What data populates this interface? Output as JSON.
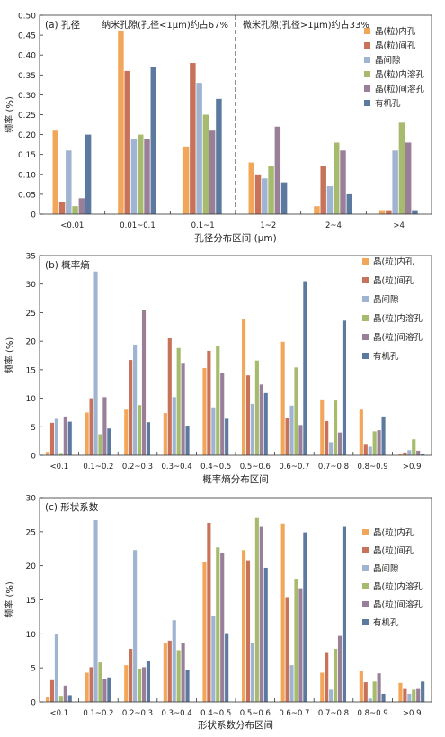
{
  "colors": [
    "#f2a65a",
    "#c8725a",
    "#9fb4d0",
    "#a6bb6e",
    "#9a7f98",
    "#5c7aa0"
  ],
  "chart_data": [
    {
      "type": "bar",
      "title": "(a) 孔径",
      "xlabel": "孔径分布区间 (μm)",
      "ylabel": "频率 (%)",
      "ylim": [
        0,
        0.5
      ],
      "yticks": [
        "0",
        "0.05",
        "0.10",
        "0.15",
        "0.20",
        "0.25",
        "0.30",
        "0.35",
        "0.40",
        "0.45",
        "0.50"
      ],
      "grid": false,
      "legend": "top-right",
      "annotation_left": "纳米孔隙(孔径<1μm)约占67%",
      "annotation_right": "微米孔隙(孔径>1μm)约占33%",
      "divider_after_category": 2,
      "categories": [
        "<0.01",
        "0.01~0.1",
        "0.1~1",
        "1~2",
        "2~4",
        ">4"
      ],
      "series": [
        {
          "name": "晶(粒)内孔",
          "values": [
            0.21,
            0.46,
            0.17,
            0.13,
            0.02,
            0.01
          ]
        },
        {
          "name": "晶(粒)间孔",
          "values": [
            0.03,
            0.36,
            0.38,
            0.1,
            0.12,
            0.01
          ]
        },
        {
          "name": "晶间隙",
          "values": [
            0.16,
            0.19,
            0.33,
            0.09,
            0.07,
            0.16
          ]
        },
        {
          "name": "晶(粒)内溶孔",
          "values": [
            0.02,
            0.2,
            0.25,
            0.12,
            0.18,
            0.23
          ]
        },
        {
          "name": "晶(粒)间溶孔",
          "values": [
            0.04,
            0.19,
            0.21,
            0.22,
            0.16,
            0.18
          ]
        },
        {
          "name": "有机孔",
          "values": [
            0.2,
            0.37,
            0.29,
            0.08,
            0.05,
            0.01
          ]
        }
      ]
    },
    {
      "type": "bar",
      "title": "(b) 概率熵",
      "xlabel": "概率熵分布区间",
      "ylabel": "频率 (%)",
      "ylim": [
        0,
        35
      ],
      "yticks": [
        "0",
        "5",
        "10",
        "15",
        "20",
        "25",
        "30",
        "35"
      ],
      "grid": false,
      "legend": "top-right",
      "categories": [
        "<0.1",
        "0.1~0.2",
        "0.2~0.3",
        "0.3~0.4",
        "0.4~0.5",
        "0.5~0.6",
        "0.6~0.7",
        "0.7~0.8",
        "0.8~0.9",
        ">0.9"
      ],
      "series": [
        {
          "name": "晶(粒)内孔",
          "values": [
            0.6,
            7.5,
            8.0,
            7.4,
            15.3,
            23.8,
            19.9,
            9.8,
            8.0,
            0.2
          ]
        },
        {
          "name": "晶(粒)间孔",
          "values": [
            5.7,
            10.0,
            16.7,
            20.5,
            18.3,
            14.0,
            6.5,
            6.0,
            2.0,
            0.5
          ]
        },
        {
          "name": "晶间隙",
          "values": [
            6.4,
            32.2,
            19.4,
            10.2,
            8.4,
            9.0,
            8.7,
            2.3,
            1.5,
            0.9
          ]
        },
        {
          "name": "晶(粒)内溶孔",
          "values": [
            0.4,
            3.7,
            8.8,
            18.8,
            19.2,
            16.6,
            15.4,
            9.6,
            4.2,
            2.8
          ]
        },
        {
          "name": "晶(粒)间溶孔",
          "values": [
            6.8,
            10.2,
            25.4,
            16.2,
            14.5,
            12.4,
            5.3,
            4.0,
            4.4,
            0.8
          ]
        },
        {
          "name": "有机孔",
          "values": [
            5.9,
            4.7,
            5.8,
            5.2,
            6.4,
            10.9,
            30.5,
            23.6,
            6.8,
            0.3
          ]
        }
      ]
    },
    {
      "type": "bar",
      "title": "(c) 形状系数",
      "xlabel": "形状系数分布区间",
      "ylabel": "频率 (%)",
      "ylim": [
        0,
        30
      ],
      "yticks": [
        "0",
        "5",
        "10",
        "15",
        "20",
        "25",
        "30"
      ],
      "grid": false,
      "legend": "top-right",
      "categories": [
        "<0.1",
        "0.1~0.2",
        "0.2~0.3",
        "0.3~0.4",
        "0.4~0.5",
        "0.5~0.6",
        "0.6~0.7",
        "0.7~0.8",
        "0.8~0.9",
        ">0.9"
      ],
      "series": [
        {
          "name": "晶(粒)内孔",
          "values": [
            0.7,
            4.3,
            5.4,
            8.7,
            20.6,
            22.3,
            26.2,
            4.3,
            4.5,
            2.8
          ]
        },
        {
          "name": "晶(粒)间孔",
          "values": [
            3.2,
            5.1,
            7.8,
            9.0,
            26.3,
            20.8,
            15.4,
            7.2,
            2.9,
            1.9
          ]
        },
        {
          "name": "晶间隙",
          "values": [
            9.9,
            26.7,
            22.3,
            12.0,
            12.6,
            8.6,
            5.4,
            1.8,
            0.5,
            1.2
          ]
        },
        {
          "name": "晶(粒)内溶孔",
          "values": [
            0.9,
            5.8,
            4.9,
            7.6,
            22.7,
            27.0,
            18.1,
            7.8,
            3.0,
            1.8
          ]
        },
        {
          "name": "晶(粒)间溶孔",
          "values": [
            2.4,
            3.4,
            5.1,
            8.7,
            21.9,
            25.7,
            16.7,
            9.7,
            4.2,
            1.9
          ]
        },
        {
          "name": "有机孔",
          "values": [
            1.0,
            3.6,
            6.0,
            4.7,
            10.1,
            19.7,
            24.9,
            25.7,
            1.2,
            3.0
          ]
        }
      ]
    }
  ]
}
